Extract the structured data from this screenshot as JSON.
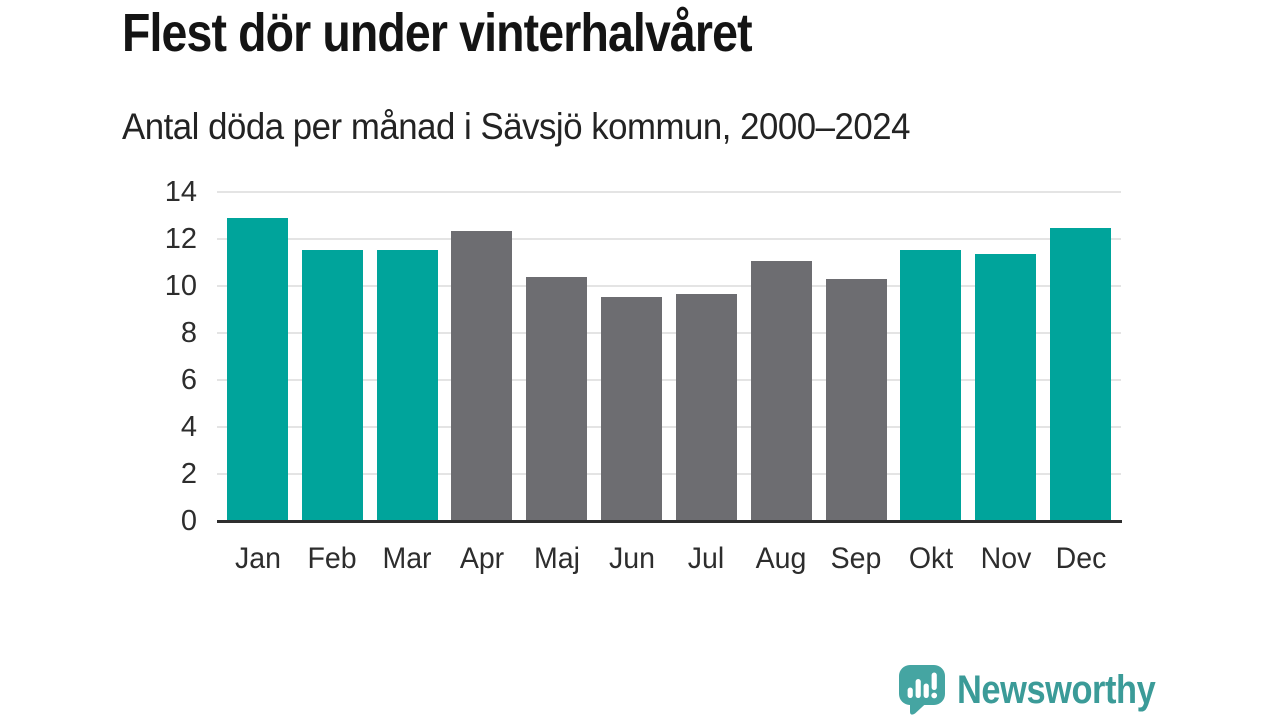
{
  "header": {
    "title": "Flest dör under vinterhalvåret",
    "subtitle": "Antal döda per månad i Sävsjö kommun, 2000–2024"
  },
  "chart_data": {
    "type": "bar",
    "title": "Flest dör under vinterhalvåret",
    "subtitle": "Antal döda per månad i Sävsjö kommun, 2000–2024",
    "categories": [
      "Jan",
      "Feb",
      "Mar",
      "Apr",
      "Maj",
      "Jun",
      "Jul",
      "Aug",
      "Sep",
      "Okt",
      "Nov",
      "Dec"
    ],
    "values": [
      12.9,
      11.55,
      11.55,
      12.35,
      10.4,
      9.55,
      9.65,
      11.05,
      10.3,
      11.55,
      11.35,
      12.45
    ],
    "bar_colors": [
      "#00a49b",
      "#00a49b",
      "#00a49b",
      "#6d6d71",
      "#6d6d71",
      "#6d6d71",
      "#6d6d71",
      "#6d6d71",
      "#6d6d71",
      "#00a49b",
      "#00a49b",
      "#00a49b"
    ],
    "highlight_color": "#00a49b",
    "muted_color": "#6d6d71",
    "yticks": [
      0,
      2,
      4,
      6,
      8,
      10,
      12,
      14
    ],
    "ylim": [
      0,
      14
    ],
    "xlabel": "",
    "ylabel": "",
    "grid": true,
    "legend_position": "none"
  },
  "footer": {
    "brand_name": "Newsworthy",
    "brand_icon": "newsworthy-speech-bubble-bars-icon",
    "brand_text_color": "#3b9b98",
    "brand_bubble_color": "#45a5a2"
  }
}
